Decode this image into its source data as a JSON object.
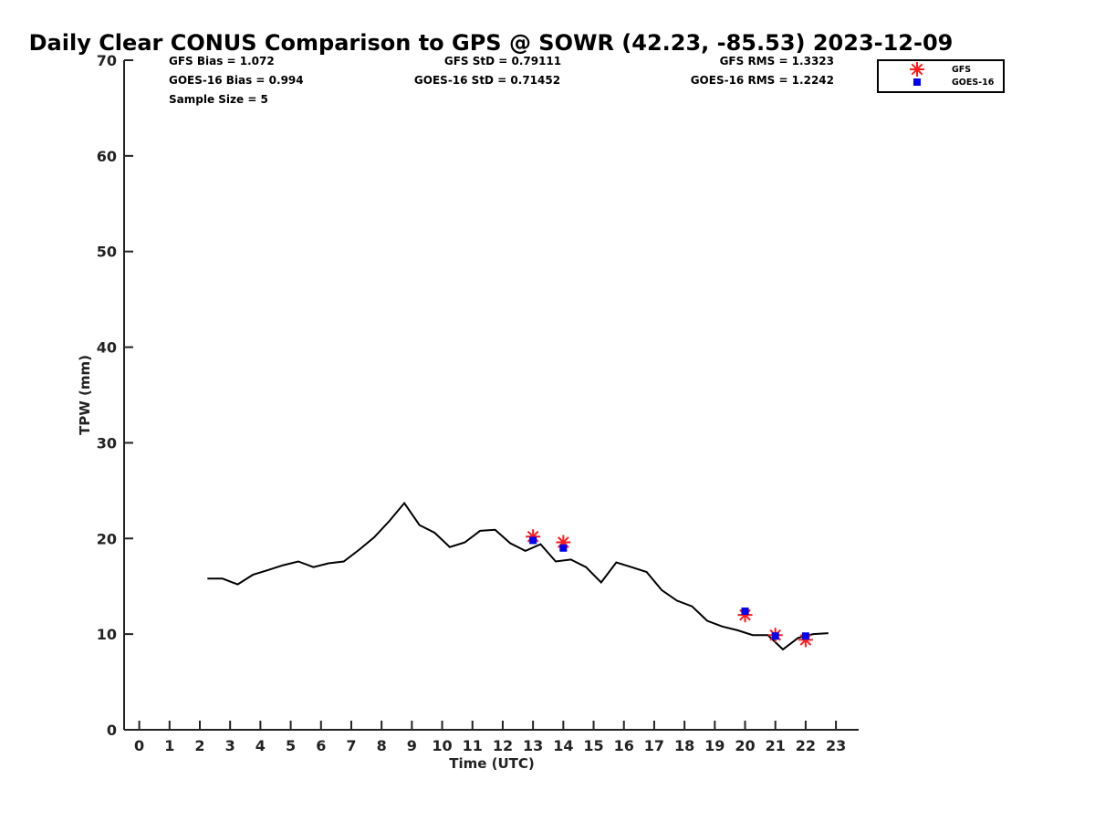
{
  "chart_data": {
    "type": "line",
    "title": "Daily Clear CONUS Comparison to GPS @ SOWR (42.23, -85.53) 2023-12-09",
    "xlabel": "Time (UTC)",
    "ylabel": "TPW (mm)",
    "xlim": [
      -0.5,
      23.75
    ],
    "ylim": [
      0,
      70
    ],
    "xticks": [
      0,
      1,
      2,
      3,
      4,
      5,
      6,
      7,
      8,
      9,
      10,
      11,
      12,
      13,
      14,
      15,
      16,
      17,
      18,
      19,
      20,
      21,
      22,
      23
    ],
    "yticks": [
      0,
      10,
      20,
      30,
      40,
      50,
      60,
      70
    ],
    "grid": false,
    "legend_position": "top-right",
    "stats": {
      "gfs_bias": "GFS Bias = 1.072",
      "goes_bias": "GOES-16 Bias = 0.994",
      "sample_size": "Sample Size = 5",
      "gfs_std": "GFS StD = 0.79111",
      "goes_std": "GOES-16 StD = 0.71452",
      "gfs_rms": "GFS RMS = 1.3323",
      "goes_rms": "GOES-16 RMS = 1.2242"
    },
    "series": [
      {
        "name": "GPS",
        "kind": "line",
        "color": "#000000",
        "x": [
          2.25,
          2.75,
          3.25,
          3.75,
          4.25,
          4.75,
          5.25,
          5.75,
          6.25,
          6.75,
          7.25,
          7.75,
          8.25,
          8.75,
          9.25,
          9.75,
          10.25,
          10.75,
          11.25,
          11.75,
          12.25,
          12.75,
          13.25,
          13.75,
          14.25,
          14.75,
          15.25,
          15.75,
          16.25,
          16.75,
          17.25,
          17.75,
          18.25,
          18.75,
          19.25,
          19.75,
          20.25,
          20.75,
          21.25,
          21.75,
          22.25,
          22.75
        ],
        "y": [
          15.8,
          15.8,
          15.2,
          16.2,
          16.7,
          17.2,
          17.6,
          17.0,
          17.4,
          17.6,
          18.8,
          20.1,
          21.8,
          23.7,
          21.4,
          20.6,
          19.1,
          19.6,
          20.8,
          20.9,
          19.5,
          18.7,
          19.4,
          17.6,
          17.8,
          17.0,
          15.4,
          17.5,
          17.0,
          16.5,
          14.6,
          13.5,
          12.9,
          11.4,
          10.8,
          10.4,
          9.9,
          9.9,
          8.4,
          9.6,
          10.0,
          10.1
        ]
      },
      {
        "name": "GFS",
        "kind": "scatter",
        "marker": "asterisk",
        "color": "#ff1a1a",
        "x": [
          13,
          14,
          20,
          21,
          22
        ],
        "y": [
          20.2,
          19.6,
          12.0,
          9.9,
          9.4
        ]
      },
      {
        "name": "GOES-16",
        "kind": "scatter",
        "marker": "square",
        "color": "#0000ee",
        "x": [
          13,
          14,
          20,
          21,
          22
        ],
        "y": [
          19.8,
          19.0,
          12.4,
          9.8,
          9.8
        ]
      }
    ],
    "legend": [
      "GFS",
      "GOES-16"
    ]
  }
}
